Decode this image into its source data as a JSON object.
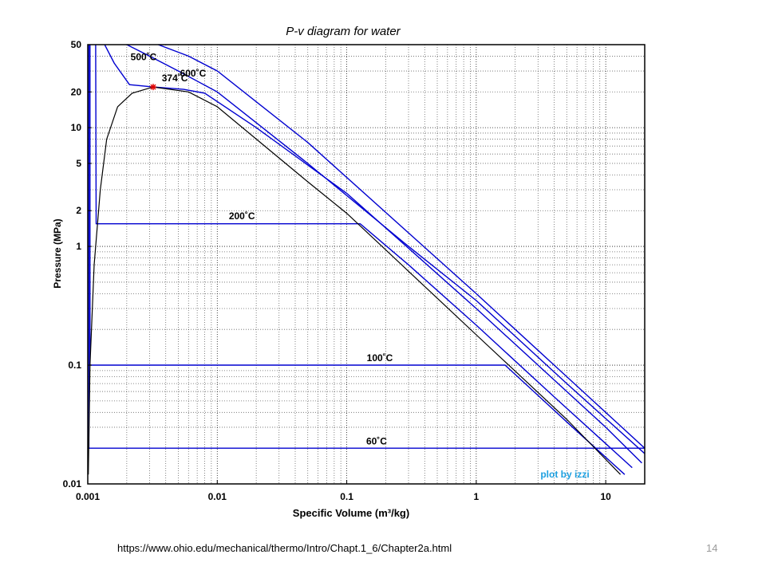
{
  "chart_data": {
    "type": "line",
    "title": "P-v diagram for water",
    "xlabel": "Specific Volume (m³/kg)",
    "ylabel": "Pressure (MPa)",
    "xscale": "log",
    "yscale": "log",
    "xlim": [
      0.001,
      20
    ],
    "ylim": [
      0.01,
      50
    ],
    "grid": true,
    "x_ticks": [
      "0.001",
      "0.01",
      "0.1",
      "1",
      "10"
    ],
    "x_tick_values": [
      0.001,
      0.01,
      0.1,
      1,
      10
    ],
    "y_ticks": [
      "0.01",
      "0.1",
      "1",
      "2",
      "5",
      "10",
      "20",
      "50"
    ],
    "y_tick_values": [
      0.01,
      0.1,
      1,
      2,
      5,
      10,
      20,
      50
    ],
    "credit": "plot by izzi",
    "critical_point": {
      "x": 0.0032,
      "y": 22,
      "color": "#e00000"
    },
    "colors": {
      "isotherm": "#0000d0",
      "dome": "#000000",
      "credit": "#1ea0e0"
    },
    "series": [
      {
        "name": "60˚C",
        "color": "#0000d0",
        "points": [
          [
            0.00102,
            50
          ],
          [
            0.00102,
            0.02
          ],
          [
            20,
            0.02
          ]
        ]
      },
      {
        "name": "100˚C",
        "color": "#0000d0",
        "points": [
          [
            0.00104,
            50
          ],
          [
            0.00104,
            0.1
          ],
          [
            1.67,
            0.1
          ],
          [
            5.2,
            0.032
          ],
          [
            14,
            0.012
          ]
        ]
      },
      {
        "name": "200˚C",
        "color": "#0000d0",
        "points": [
          [
            0.00115,
            50
          ],
          [
            0.00116,
            1.55
          ],
          [
            0.127,
            1.55
          ],
          [
            0.3,
            0.7
          ],
          [
            1,
            0.217
          ],
          [
            4,
            0.054
          ],
          [
            16,
            0.0137
          ]
        ]
      },
      {
        "name": "374˚C",
        "color": "#0000d0",
        "points": [
          [
            0.00135,
            50
          ],
          [
            0.0016,
            35
          ],
          [
            0.0021,
            23
          ],
          [
            0.0032,
            22
          ],
          [
            0.0055,
            21
          ],
          [
            0.008,
            19.5
          ],
          [
            0.02,
            10
          ],
          [
            0.1,
            2.8
          ],
          [
            1,
            0.3
          ],
          [
            10,
            0.03
          ],
          [
            19,
            0.015
          ]
        ]
      },
      {
        "name": "500˚C",
        "color": "#0000d0",
        "points": [
          [
            0.002,
            50
          ],
          [
            0.003,
            40
          ],
          [
            0.005,
            30
          ],
          [
            0.01,
            20
          ],
          [
            0.05,
            5
          ],
          [
            0.3,
            1
          ],
          [
            1,
            0.35
          ],
          [
            5,
            0.07
          ],
          [
            20,
            0.018
          ]
        ]
      },
      {
        "name": "600˚C",
        "color": "#0000d0",
        "points": [
          [
            0.0035,
            50
          ],
          [
            0.006,
            40
          ],
          [
            0.01,
            30
          ],
          [
            0.05,
            7.5
          ],
          [
            0.3,
            1.3
          ],
          [
            1,
            0.4
          ],
          [
            5,
            0.08
          ],
          [
            20,
            0.02
          ]
        ]
      },
      {
        "name": "saturation dome",
        "color": "#000000",
        "points": [
          [
            0.00101,
            0.012
          ],
          [
            0.00104,
            0.1
          ],
          [
            0.00112,
            0.7
          ],
          [
            0.00125,
            3
          ],
          [
            0.0014,
            8
          ],
          [
            0.0017,
            15
          ],
          [
            0.0022,
            19.5
          ],
          [
            0.0032,
            22
          ],
          [
            0.006,
            20
          ],
          [
            0.01,
            15
          ],
          [
            0.05,
            3.5
          ],
          [
            0.1,
            1.9
          ],
          [
            1,
            0.18
          ],
          [
            5,
            0.035
          ],
          [
            13,
            0.012
          ]
        ]
      }
    ]
  },
  "footer": {
    "url": "https://www.ohio.edu/mechanical/thermo/Intro/Chapt.1_6/Chapter2a.html",
    "slide_number": "14"
  }
}
